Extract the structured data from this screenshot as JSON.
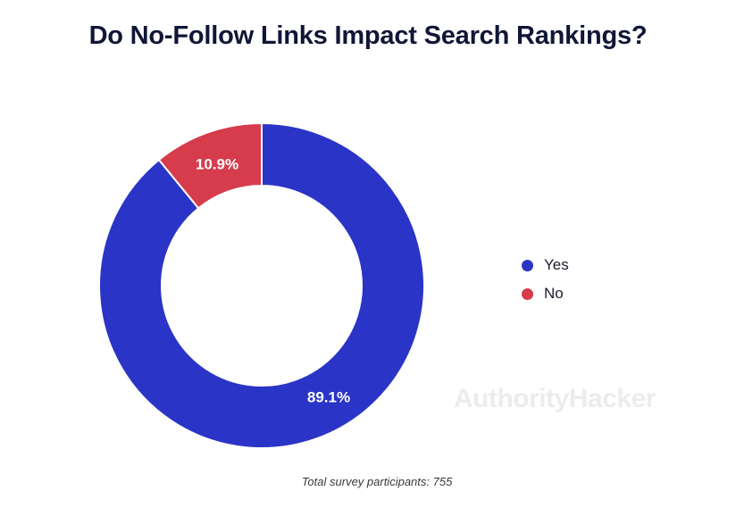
{
  "title": "Do No-Follow Links Impact Search Rankings?",
  "watermark": "AuthorityHacker",
  "footnote": "Total survey participants: 755",
  "chart_data": {
    "type": "pie",
    "style": "donut",
    "title": "Do No-Follow Links Impact Search Rankings?",
    "slices": [
      {
        "label": "Yes",
        "value": 89.1,
        "display": "89.1%",
        "color": "#2a34c6"
      },
      {
        "label": "No",
        "value": 10.9,
        "display": "10.9%",
        "color": "#d63c4c"
      }
    ],
    "legend_position": "right",
    "note": "Total survey participants: 755"
  }
}
